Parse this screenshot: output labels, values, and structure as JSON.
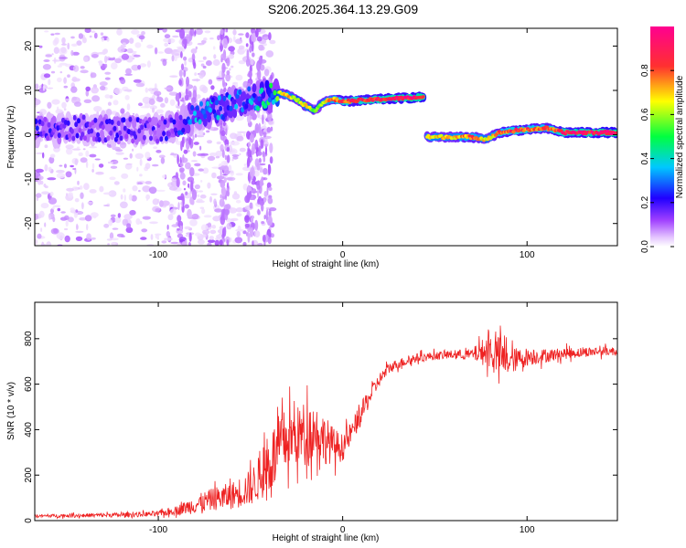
{
  "figure_title": "S206.2025.364.13.29.G09",
  "colors": {
    "snr_line": "#ee2222",
    "colormap": [
      "#ffffff",
      "#a040ff",
      "#2000ff",
      "#00c8ff",
      "#00ff40",
      "#ffff00",
      "#ff3030",
      "#ff0090"
    ]
  },
  "chart_data": [
    {
      "type": "heatmap",
      "xlabel": "Height of straight line (km)",
      "ylabel": "Frequency (Hz)",
      "xlim": [
        -167,
        149
      ],
      "ylim": [
        -25,
        24
      ],
      "xticks": [
        -100,
        0,
        100
      ],
      "xtick_labels": [
        "-100",
        "0",
        "100"
      ],
      "yticks": [
        -20,
        -10,
        0,
        10,
        20
      ],
      "ytick_labels": [
        "-20",
        "-10",
        "0",
        "10",
        "20"
      ],
      "colorbar": {
        "label": "Normalized spectral amplitude",
        "range": [
          0.0,
          1.0
        ],
        "ticks": [
          0.0,
          0.2,
          0.4,
          0.6,
          0.8
        ],
        "tick_labels": [
          "0.0",
          "0.2",
          "0.4",
          "0.6",
          "0.8"
        ]
      },
      "ridge": {
        "x": [
          -165,
          -140,
          -120,
          -100,
          -90,
          -80,
          -70,
          -60,
          -50,
          -40,
          -35,
          -30,
          -25,
          -20,
          -15,
          -10,
          -5,
          0,
          20,
          44,
          45,
          60,
          70,
          78,
          85,
          95,
          110,
          120,
          149
        ],
        "freq": [
          1,
          1.5,
          1,
          1,
          2,
          4.5,
          5.5,
          7,
          8,
          9,
          9.5,
          9,
          8,
          6.5,
          5.5,
          7.5,
          8,
          7.5,
          8,
          8.5,
          -0.5,
          -0.5,
          -0.5,
          -1,
          0.5,
          1,
          1.5,
          0.5,
          0.5
        ],
        "amp": [
          0.22,
          0.2,
          0.2,
          0.2,
          0.25,
          0.35,
          0.4,
          0.35,
          0.35,
          0.5,
          0.6,
          0.75,
          0.6,
          0.7,
          0.55,
          0.7,
          0.75,
          0.85,
          0.9,
          0.95,
          0.7,
          0.7,
          0.8,
          0.65,
          0.8,
          0.85,
          0.8,
          0.9,
          0.95
        ]
      },
      "noise_region": {
        "x_range": [
          -167,
          -38
        ],
        "note": "scattered low-amplitude energy"
      }
    },
    {
      "type": "line",
      "xlabel": "Height of straight line (km)",
      "ylabel": "SNR (10 * v/v)",
      "xlim": [
        -167,
        149
      ],
      "ylim": [
        0,
        960
      ],
      "xticks": [
        -100,
        0,
        100
      ],
      "xtick_labels": [
        "-100",
        "0",
        "100"
      ],
      "yticks": [
        0,
        200,
        400,
        600,
        800
      ],
      "ytick_labels": [
        "0",
        "200",
        "400",
        "600",
        "800"
      ],
      "series": [
        {
          "name": "SNR",
          "x": [
            -167,
            -150,
            -120,
            -100,
            -90,
            -80,
            -70,
            -60,
            -50,
            -45,
            -40,
            -35,
            -30,
            -25,
            -20,
            -15,
            -10,
            -5,
            0,
            5,
            10,
            15,
            20,
            25,
            30,
            40,
            50,
            60,
            70,
            80,
            85,
            90,
            100,
            110,
            120,
            130,
            140,
            149
          ],
          "y": [
            20,
            22,
            25,
            30,
            45,
            70,
            95,
            110,
            145,
            190,
            250,
            310,
            360,
            370,
            390,
            400,
            360,
            330,
            320,
            390,
            470,
            550,
            620,
            670,
            690,
            715,
            725,
            730,
            730,
            750,
            720,
            700,
            720,
            725,
            735,
            740,
            745,
            745
          ],
          "jitter": [
            6,
            8,
            10,
            12,
            20,
            40,
            50,
            60,
            80,
            100,
            140,
            150,
            140,
            130,
            140,
            120,
            110,
            80,
            60,
            50,
            50,
            40,
            30,
            25,
            22,
            20,
            18,
            20,
            25,
            80,
            90,
            60,
            40,
            30,
            25,
            22,
            20,
            20
          ]
        }
      ]
    }
  ]
}
